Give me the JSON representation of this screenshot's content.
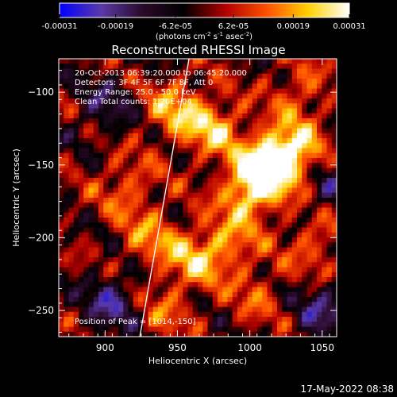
{
  "chart_data": {
    "type": "heatmap",
    "title": "Reconstructed RHESSI Image",
    "xlabel": "Heliocentric X (arcsec)",
    "ylabel": "Heliocentric Y (arcsec)",
    "xlim": [
      868,
      1060
    ],
    "ylim": [
      -268,
      -77
    ],
    "x_ticks": [
      900,
      950,
      1000,
      1050
    ],
    "y_ticks": [
      -100,
      -150,
      -200,
      -250
    ],
    "colorbar": {
      "ticks": [
        "-0.00031",
        "-0.00019",
        "-6.2e-05",
        "6.2e-05",
        "0.00019",
        "0.00031"
      ],
      "tick_values": [
        -0.00031,
        -0.00019,
        -6.2e-05,
        6.2e-05,
        0.00019,
        0.00031
      ],
      "range": [
        -0.00031,
        0.00031
      ],
      "units": "(photons cm",
      "units_parts": [
        "(photons cm",
        "-2",
        " s",
        "-1",
        " asec",
        "-2",
        ")"
      ],
      "colormap": [
        "#0000ff",
        "#5a3aa8",
        "#2a0a2a",
        "#000000",
        "#b00000",
        "#ff5000",
        "#ffd000",
        "#ffffff"
      ]
    },
    "annotations": [
      "20-Oct-2013 06:39:20.000 to 06:45:20.000",
      "Detectors: 3F 4F 5F 6F 7F 8F, Att 0",
      "Energy Range: 25.0 - 50.0 keV",
      "Clean     Total counts: 1.20E+04"
    ],
    "peak_label": "Position of Peak = [1014,-150]",
    "peak": [
      1014,
      -150
    ],
    "limb_line": [
      [
        924,
        -268
      ],
      [
        958,
        -77
      ]
    ],
    "hotspots": [
      {
        "x": 1014,
        "y": -150,
        "value": 0.00031
      },
      {
        "x": 1000,
        "y": -168,
        "value": 0.00026
      },
      {
        "x": 1030,
        "y": -140,
        "value": 0.00024
      },
      {
        "x": 948,
        "y": -112,
        "value": 0.00019
      },
      {
        "x": 975,
        "y": -125,
        "value": 0.00021
      },
      {
        "x": 960,
        "y": -215,
        "value": 0.00018
      },
      {
        "x": 985,
        "y": -205,
        "value": 0.00016
      },
      {
        "x": 930,
        "y": -200,
        "value": 0.00014
      },
      {
        "x": 915,
        "y": -165,
        "value": 0.00013
      },
      {
        "x": 1045,
        "y": -205,
        "value": 0.00013
      },
      {
        "x": 940,
        "y": -250,
        "value": 0.00011
      },
      {
        "x": 1035,
        "y": -100,
        "value": 0.00012
      },
      {
        "x": 1005,
        "y": -240,
        "value": 0.0001
      },
      {
        "x": 900,
        "y": -110,
        "value": -0.00012
      },
      {
        "x": 905,
        "y": -245,
        "value": -0.00018
      },
      {
        "x": 1050,
        "y": -250,
        "value": -0.00016
      },
      {
        "x": 1055,
        "y": -165,
        "value": -0.0001
      }
    ]
  },
  "footer": {
    "timestamp": "17-May-2022 08:38"
  }
}
